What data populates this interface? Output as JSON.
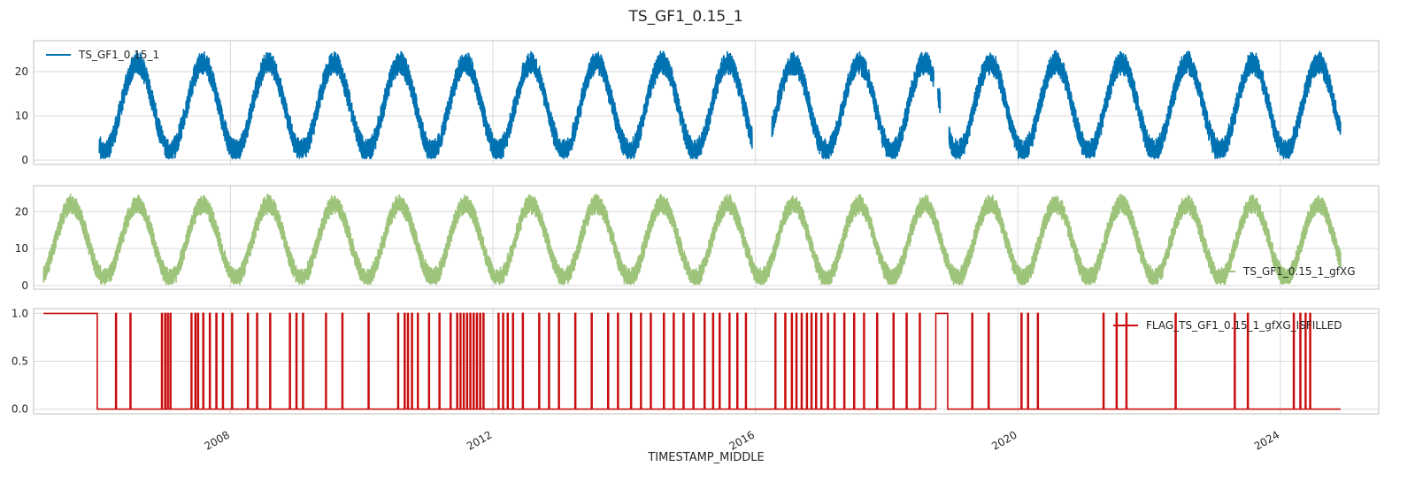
{
  "figure": {
    "title": "TS_GF1_0.15_1",
    "xlabel": "TIMESTAMP_MIDDLE"
  },
  "chart_data": [
    {
      "type": "line",
      "panel": "top",
      "series": [
        {
          "name": "TS_GF1_0.15_1",
          "color": "#0072b2",
          "gapfilled": false
        }
      ],
      "xlim": [
        2005.0,
        2025.5
      ],
      "ylim": [
        -1,
        27
      ],
      "yticks": [
        0,
        10,
        20
      ],
      "xticks": [
        "2008",
        "2012",
        "2016",
        "2020",
        "2024"
      ],
      "x_range": [
        2005.15,
        2024.92
      ],
      "observed_from": 2006.0,
      "gaps": [
        [
          2015.95,
          2016.25
        ],
        [
          2018.72,
          2018.78
        ],
        [
          2018.82,
          2018.95
        ]
      ],
      "annual_cycle": {
        "winter_min_approx": 2,
        "summer_max_approx": 22
      },
      "legend": "upper-left",
      "grid": true
    },
    {
      "type": "line",
      "panel": "middle",
      "series": [
        {
          "name": "TS_GF1_0.15_1_gfXG",
          "color": "#9dc47a",
          "gapfilled": true
        }
      ],
      "xlim": [
        2005.0,
        2025.5
      ],
      "ylim": [
        -1,
        27
      ],
      "yticks": [
        0,
        10,
        20
      ],
      "xticks": [
        "2008",
        "2012",
        "2016",
        "2020",
        "2024"
      ],
      "x_range": [
        2005.15,
        2024.92
      ],
      "annual_cycle": {
        "winter_min_approx": 2,
        "summer_max_approx": 22
      },
      "legend": "lower-right",
      "grid": true
    },
    {
      "type": "line",
      "panel": "bottom",
      "series": [
        {
          "name": "FLAG_TS_GF1_0.15_1_gfXG_ISFILLED",
          "color": "#c90c0c"
        }
      ],
      "xlim": [
        2005.0,
        2025.5
      ],
      "ylim": [
        -0.05,
        1.05
      ],
      "yticks": [
        "0.0",
        "0.5",
        "1.0"
      ],
      "xticks": [
        "2008",
        "2012",
        "2016",
        "2020",
        "2024"
      ],
      "x_range": [
        2005.15,
        2024.92
      ],
      "filled_blocks": [
        [
          2005.15,
          2005.97
        ],
        [
          2018.75,
          2018.93
        ]
      ],
      "flag_spikes": [
        2006.25,
        2006.47,
        2006.95,
        2007.0,
        2007.04,
        2007.08,
        2007.4,
        2007.46,
        2007.5,
        2007.58,
        2007.68,
        2007.78,
        2007.88,
        2008.02,
        2008.26,
        2008.4,
        2008.6,
        2008.9,
        2009.0,
        2009.1,
        2009.45,
        2009.7,
        2010.1,
        2010.55,
        2010.65,
        2010.7,
        2010.76,
        2010.85,
        2011.02,
        2011.18,
        2011.35,
        2011.45,
        2011.5,
        2011.55,
        2011.6,
        2011.65,
        2011.7,
        2011.75,
        2011.8,
        2011.85,
        2012.08,
        2012.15,
        2012.22,
        2012.3,
        2012.45,
        2012.7,
        2012.85,
        2013.0,
        2013.25,
        2013.5,
        2013.75,
        2013.9,
        2014.1,
        2014.25,
        2014.4,
        2014.6,
        2014.75,
        2014.9,
        2015.05,
        2015.22,
        2015.35,
        2015.45,
        2015.6,
        2015.72,
        2015.85,
        2016.3,
        2016.45,
        2016.55,
        2016.62,
        2016.7,
        2016.78,
        2016.85,
        2016.92,
        2017.0,
        2017.1,
        2017.2,
        2017.35,
        2017.5,
        2017.65,
        2017.85,
        2018.1,
        2018.3,
        2018.5,
        2019.3,
        2019.55,
        2020.05,
        2020.15,
        2020.3,
        2021.3,
        2021.5,
        2021.65,
        2022.4,
        2023.3,
        2023.5,
        2024.2,
        2024.3,
        2024.38,
        2024.45
      ],
      "legend": "upper-right",
      "grid": true
    }
  ]
}
